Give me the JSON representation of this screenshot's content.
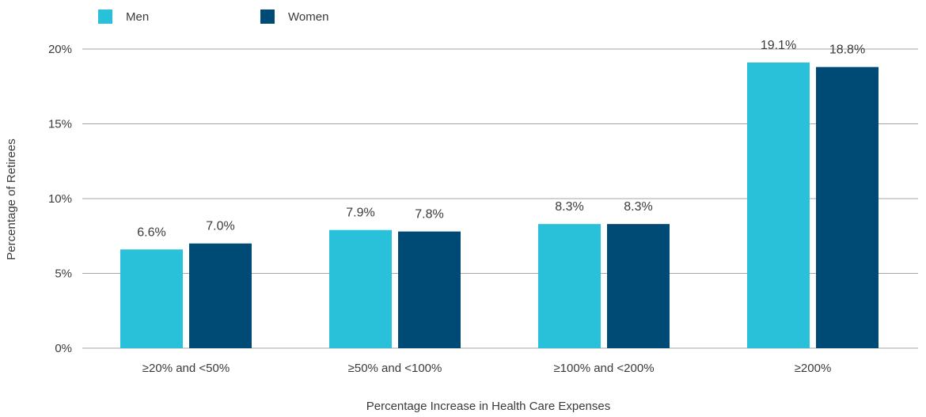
{
  "chart_data": {
    "type": "bar",
    "categories": [
      "≥20% and <50%",
      "≥50% and <100%",
      "≥100% and <200%",
      "≥200%"
    ],
    "series": [
      {
        "name": "Men",
        "values": [
          6.6,
          7.9,
          8.3,
          19.1
        ],
        "labels": [
          "6.6%",
          "7.9%",
          "8.3%",
          "19.1%"
        ],
        "color": "#29C0D9"
      },
      {
        "name": "Women",
        "values": [
          7.0,
          7.8,
          8.3,
          18.8
        ],
        "labels": [
          "7.0%",
          "7.8%",
          "8.3%",
          "18.8%"
        ],
        "color": "#004A76"
      }
    ],
    "xlabel": "Percentage Increase in Health Care Expenses",
    "ylabel": "Percentage of Retirees",
    "ylim": [
      0,
      20
    ],
    "yticks": [
      0,
      5,
      10,
      15,
      20
    ],
    "ytick_labels": [
      "0%",
      "5%",
      "10%",
      "15%",
      "20%"
    ],
    "grid": true,
    "legend_position": "top-left",
    "gridline_color": "#a6a6a6"
  }
}
